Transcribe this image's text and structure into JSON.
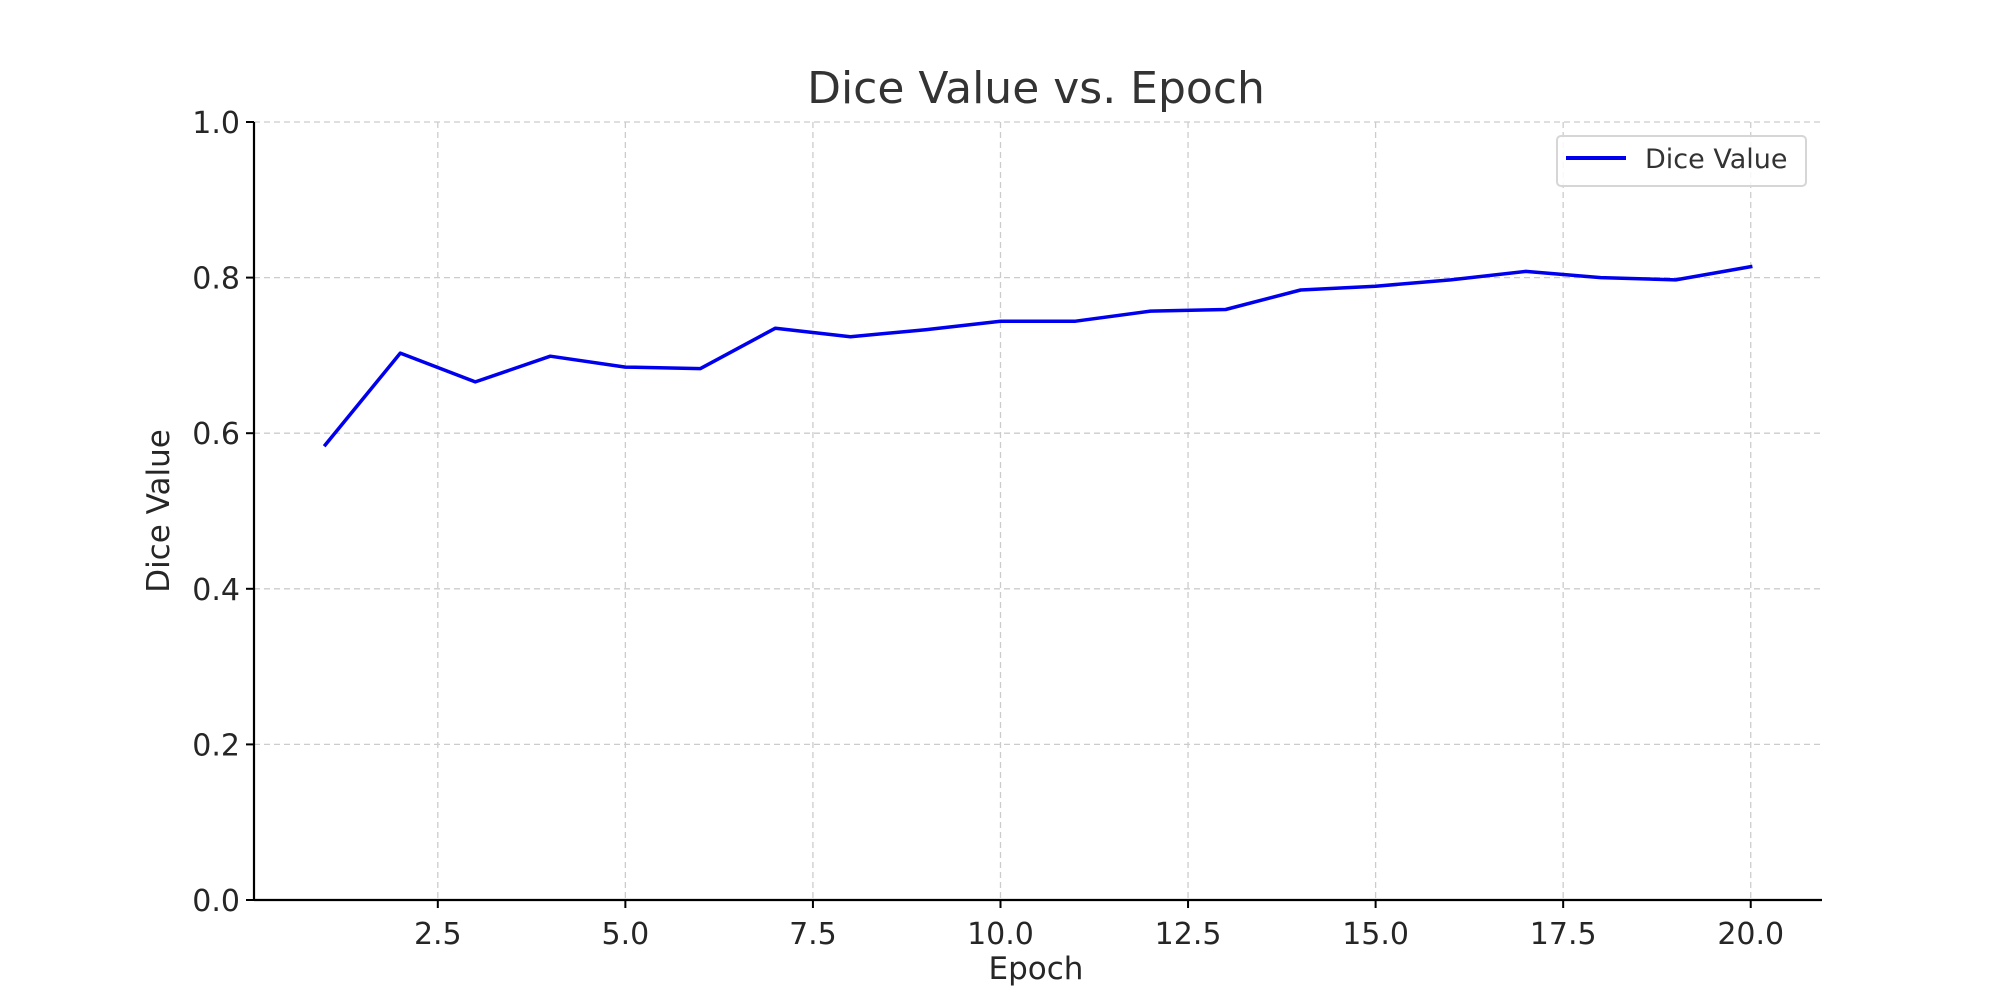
{
  "chart_data": {
    "type": "line",
    "title": "Dice Value vs. Epoch",
    "xlabel": "Epoch",
    "ylabel": "Dice Value",
    "xlim": [
      0.05,
      20.95
    ],
    "ylim": [
      0.0,
      1.0
    ],
    "xticks": [
      2.5,
      5.0,
      7.5,
      10.0,
      12.5,
      15.0,
      17.5,
      20.0
    ],
    "xtick_labels": [
      "2.5",
      "5.0",
      "7.5",
      "10.0",
      "12.5",
      "15.0",
      "17.5",
      "20.0"
    ],
    "yticks": [
      0.0,
      0.2,
      0.4,
      0.6,
      0.8,
      1.0
    ],
    "ytick_labels": [
      "0.0",
      "0.2",
      "0.4",
      "0.6",
      "0.8",
      "1.0"
    ],
    "grid": true,
    "legend_position": "top-right",
    "x": [
      1,
      2,
      3,
      4,
      5,
      6,
      7,
      8,
      9,
      10,
      11,
      12,
      13,
      14,
      15,
      16,
      17,
      18,
      19,
      20
    ],
    "series": [
      {
        "name": "Dice Value",
        "color": "#0000ee",
        "values": [
          0.585,
          0.703,
          0.666,
          0.699,
          0.685,
          0.683,
          0.735,
          0.724,
          0.733,
          0.744,
          0.744,
          0.757,
          0.759,
          0.784,
          0.789,
          0.797,
          0.808,
          0.8,
          0.797,
          0.814
        ]
      }
    ]
  }
}
